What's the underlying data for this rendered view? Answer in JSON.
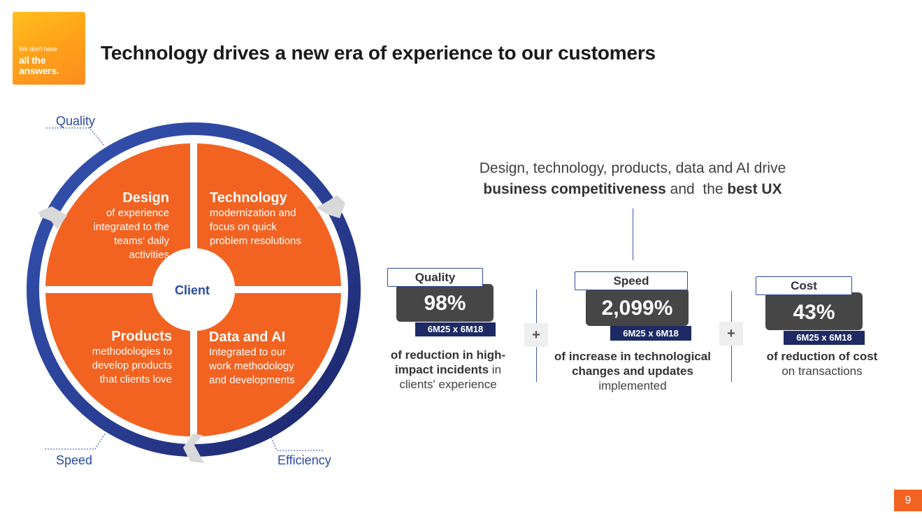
{
  "logo": {
    "line1": "We don't have",
    "line2": "all the",
    "line3": "answers."
  },
  "title": "Technology drives a new era of experience to our customers",
  "wheel": {
    "center": "Client",
    "quadrants": [
      {
        "heading": "Design",
        "body": "of experience integrated to the teams' daily activities"
      },
      {
        "heading": "Technology",
        "body": "modernization and focus on quick problem resolutions"
      },
      {
        "heading": "Products",
        "body": "methodologies to develop products that clients love"
      },
      {
        "heading": "Data and AI",
        "body": "Integrated to our work methodology and developments"
      }
    ],
    "labels": {
      "quality": "Quality",
      "speed": "Speed",
      "efficiency": "Efficiency"
    }
  },
  "tagline": {
    "line1": "Design, technology, products, data and AI drive",
    "bold1": "business competitiveness",
    "mid": " and  the ",
    "bold2": "best UX"
  },
  "metrics": [
    {
      "label": "Quality",
      "value": "98%",
      "period": "6M25 x 6M18",
      "desc_bold": "of reduction in high-impact incidents",
      "desc_rest": " in clients' experience"
    },
    {
      "label": "Speed",
      "value": "2,099%",
      "period": "6M25 x 6M18",
      "desc_bold": "of increase in technological changes and updates",
      "desc_rest": " implemented"
    },
    {
      "label": "Cost",
      "value": "43%",
      "period": "6M25 x 6M18",
      "desc_bold": "of reduction of cost",
      "desc_rest": " on transactions"
    }
  ],
  "plus_symbol": "+",
  "page_number": "9",
  "colors": {
    "orange": "#f26322",
    "navy": "#1d2a64",
    "blue": "#2b4aa0",
    "dark_gray": "#464646"
  }
}
